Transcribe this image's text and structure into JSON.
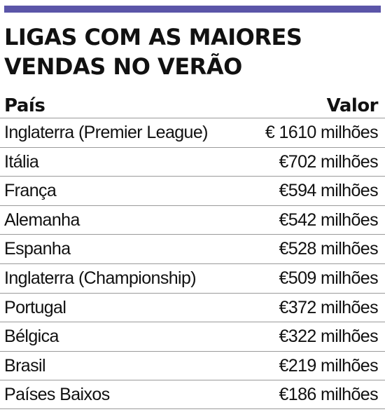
{
  "colors": {
    "accent_bar": "#5b55a8",
    "text": "#111111",
    "divider": "#9a9a9a"
  },
  "title": {
    "line1": "LIGAS COM AS MAIORES",
    "line2": "VENDAS NO VERÃO"
  },
  "table": {
    "headers": {
      "country": "País",
      "value": "Valor"
    },
    "rows": [
      {
        "country": "Inglaterra (Premier League)",
        "value": "€ 1610 milhões"
      },
      {
        "country": "Itália",
        "value": "€702 milhões"
      },
      {
        "country": "França",
        "value": "€594 milhões"
      },
      {
        "country": "Alemanha",
        "value": "€542 milhões"
      },
      {
        "country": "Espanha",
        "value": "€528 milhões"
      },
      {
        "country": "Inglaterra (Championship)",
        "value": "€509 milhões"
      },
      {
        "country": "Portugal",
        "value": "€372 milhões"
      },
      {
        "country": "Bélgica",
        "value": "€322 milhões"
      },
      {
        "country": "Brasil",
        "value": "€219 milhões"
      },
      {
        "country": "Países Baixos",
        "value": "€186 milhões"
      }
    ]
  }
}
